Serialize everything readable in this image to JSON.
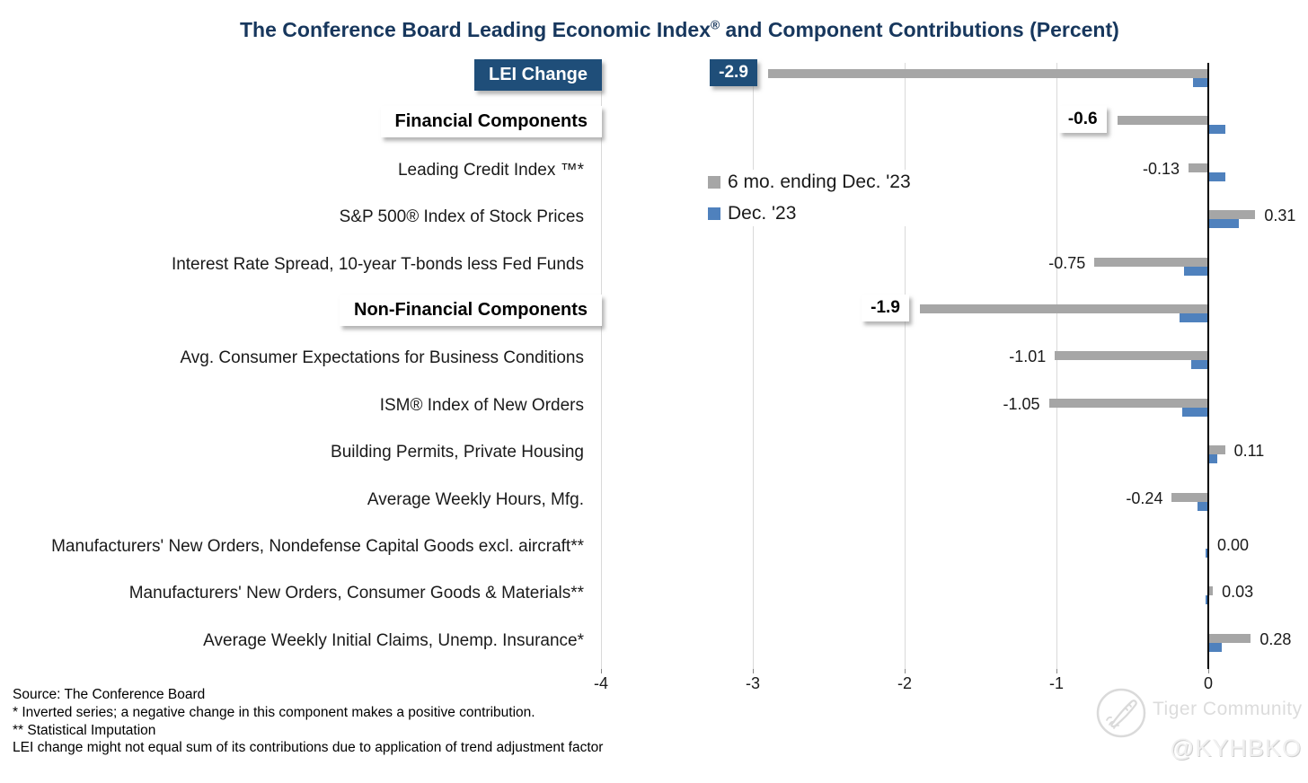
{
  "title": {
    "main": "The Conference Board Leading Economic Index",
    "superscript": "®",
    "rest": " and Component Contributions (Percent)"
  },
  "legend": {
    "items": [
      {
        "label": "6 mo. ending Dec. '23",
        "color": "#a6a6a6"
      },
      {
        "label": "Dec. '23",
        "color": "#4f81bd"
      }
    ]
  },
  "chart_data": {
    "type": "bar",
    "orientation": "horizontal",
    "title": "The Conference Board Leading Economic Index® and Component Contributions (Percent)",
    "xlabel": "",
    "ylabel": "",
    "xticks": [
      -4,
      -3,
      -2,
      -1,
      0
    ],
    "xtick_labels": [
      "-4",
      "-3",
      "-2",
      "-1",
      "0"
    ],
    "xlim": [
      -4.4,
      0.66
    ],
    "grid": true,
    "legend_position": "inside-upper-middle",
    "categories": [
      "LEI Change",
      "Financial Components",
      "Leading Credit Index ™*",
      "S&P 500® Index of Stock Prices",
      "Interest Rate Spread, 10-year T-bonds less Fed Funds",
      "Non-Financial Components",
      "Avg. Consumer Expectations for Business Conditions",
      "ISM® Index of New Orders",
      "Building Permits, Private Housing",
      "Average Weekly Hours, Mfg.",
      "Manufacturers' New Orders, Nondefense Capital Goods excl. aircraft**",
      "Manufacturers' New Orders, Consumer Goods & Materials**",
      "Average Weekly Initial Claims, Unemp. Insurance*"
    ],
    "category_slugs": [
      "lei-change",
      "financial-components",
      "leading-credit-index",
      "sp500-stock-prices",
      "interest-rate-spread",
      "non-financial-components",
      "consumer-expectations",
      "ism-new-orders",
      "building-permits",
      "weekly-hours-mfg",
      "new-orders-nondefense-capital-goods",
      "new-orders-consumer-goods",
      "initial-claims"
    ],
    "category_styles": [
      "navy-box",
      "white-box",
      "plain",
      "plain",
      "plain",
      "white-box",
      "plain",
      "plain",
      "plain",
      "plain",
      "plain",
      "plain",
      "plain"
    ],
    "series": [
      {
        "name": "6 mo. ending Dec. '23",
        "color": "#a6a6a6",
        "values": [
          -2.9,
          -0.6,
          -0.13,
          0.31,
          -0.75,
          -1.9,
          -1.01,
          -1.05,
          0.11,
          -0.24,
          0.0,
          0.03,
          0.28
        ],
        "data_labels": [
          "-2.9",
          "-0.6",
          "-0.13",
          "0.31",
          "-0.75",
          "-1.9",
          "-1.01",
          "-1.05",
          "0.11",
          "-0.24",
          "0.00",
          "0.03",
          "0.28"
        ],
        "label_styles": [
          "navy-box",
          "white-box",
          "plain",
          "plain",
          "plain",
          "white-box",
          "plain",
          "plain",
          "plain",
          "plain",
          "plain",
          "plain",
          "plain"
        ]
      },
      {
        "name": "Dec. '23",
        "color": "#4f81bd",
        "values": [
          -0.1,
          0.11,
          0.11,
          0.2,
          -0.16,
          -0.19,
          -0.11,
          -0.17,
          0.06,
          -0.07,
          -0.02,
          -0.02,
          0.09
        ],
        "data_labels": null
      }
    ]
  },
  "colors": {
    "title_text": "#17375d",
    "navy_box": "#1f4e79",
    "gray_bar": "#a6a6a6",
    "blue_bar": "#4f81bd",
    "gridline": "#d9d9d9",
    "zero_axis": "#000000"
  },
  "footnotes": [
    "Source: The Conference Board",
    "*  Inverted series; a negative change in this component makes a positive contribution.",
    "**  Statistical Imputation",
    "LEI change might not equal sum of  its contributions due to application of trend adjustment factor"
  ],
  "watermark": {
    "community": "Tiger Community",
    "handle": "@KYHBKO"
  }
}
